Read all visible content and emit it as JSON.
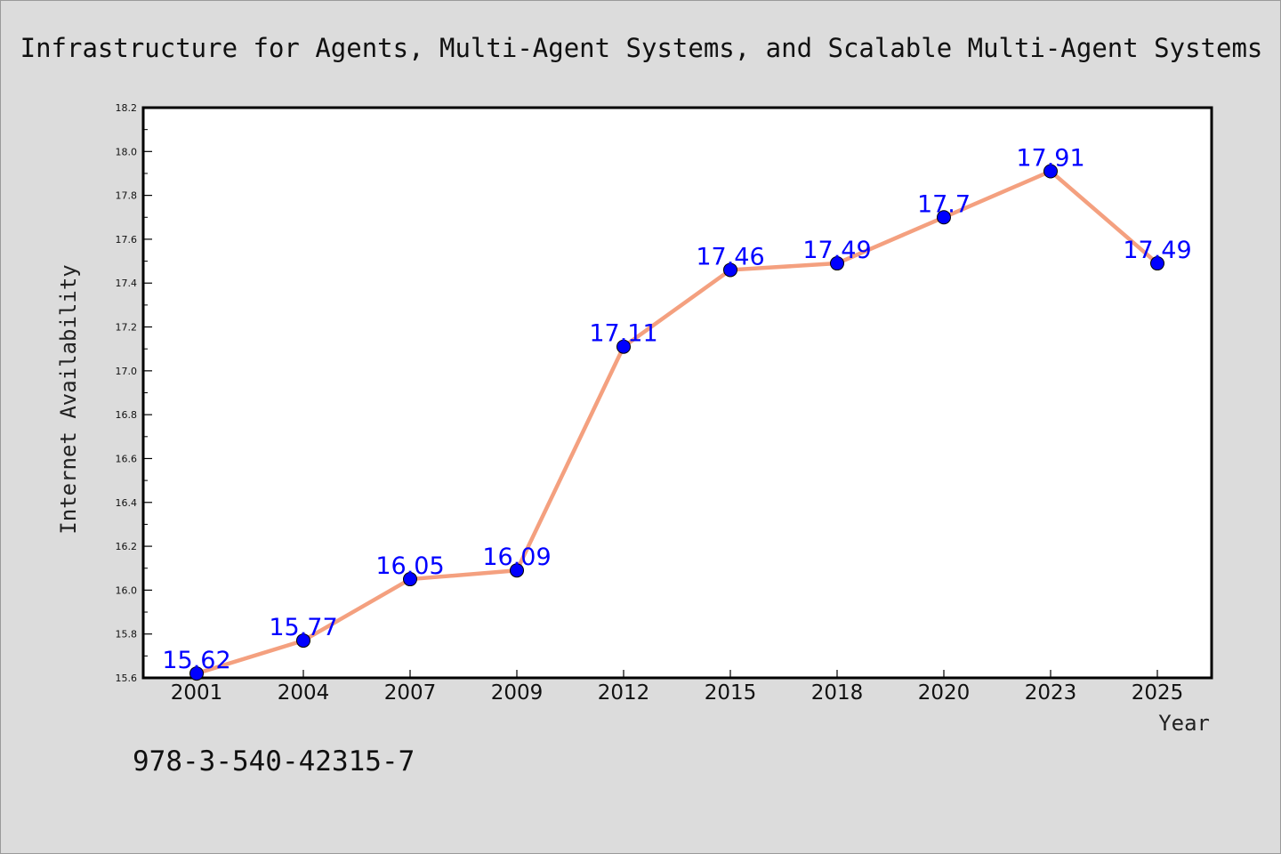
{
  "chart_data": {
    "type": "line",
    "title": "Infrastructure for Agents, Multi-Agent Systems, and Scalable Multi-Agent Systems",
    "xlabel": "Year",
    "ylabel": "Internet Availability",
    "categories": [
      "2001",
      "2004",
      "2007",
      "2009",
      "2012",
      "2015",
      "2018",
      "2020",
      "2023",
      "2025"
    ],
    "series": [
      {
        "values": [
          15.62,
          15.77,
          16.05,
          16.09,
          17.11,
          17.46,
          17.49,
          17.7,
          17.91,
          17.49
        ]
      }
    ],
    "data_labels": [
      "15.62",
      "15.77",
      "16.05",
      "16.09",
      "17.11",
      "17.46",
      "17.49",
      "17.7",
      "17.91",
      "17.49"
    ],
    "ylim": [
      15.6,
      18.2
    ],
    "yticks": [
      "15.6",
      "15.8",
      "16.0",
      "16.2",
      "16.4",
      "16.6",
      "16.8",
      "17.0",
      "17.2",
      "17.4",
      "17.6",
      "17.8",
      "18.0",
      "18.2"
    ],
    "grid": false,
    "legend": "none",
    "annotation": "978-3-540-42315-7",
    "colors": {
      "line": "#f4a07f",
      "marker": "#0000ff",
      "data_label": "#0000ff",
      "background": "#dcdcdc",
      "plot_area": "#ffffff"
    }
  }
}
